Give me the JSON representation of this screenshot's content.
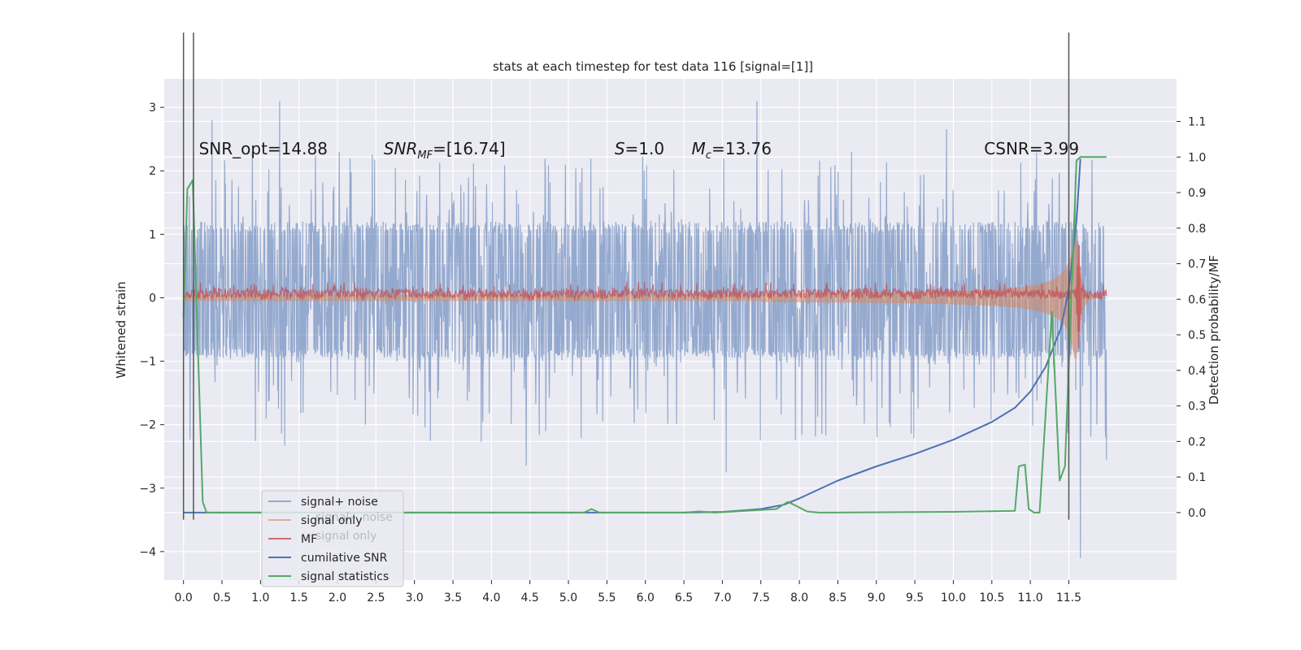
{
  "chart_data": {
    "type": "line",
    "title": "stats at each timestep for test data 116 [signal=[1]]",
    "xlabel": "",
    "ylabel": "Whitened strain",
    "y2label": "Detection probability/MF",
    "xlim": [
      -0.25,
      12.9
    ],
    "ylim": [
      -4.45,
      3.45
    ],
    "y2lim": [
      -0.19,
      1.22
    ],
    "xticks": [
      0.0,
      0.5,
      1.0,
      1.5,
      2.0,
      2.5,
      3.0,
      3.5,
      4.0,
      4.5,
      5.0,
      5.5,
      6.0,
      6.5,
      7.0,
      7.5,
      8.0,
      8.5,
      9.0,
      9.5,
      10.0,
      10.5,
      11.0,
      11.5
    ],
    "xticklabels": [
      "0.0",
      "0.5",
      "1.0",
      "1.5",
      "2.0",
      "2.5",
      "3.0",
      "3.5",
      "4.0",
      "4.5",
      "5.0",
      "5.5",
      "6.0",
      "6.5",
      "7.0",
      "7.5",
      "8.0",
      "8.5",
      "9.0",
      "9.5",
      "10.0",
      "10.5",
      "11.0",
      "11.5"
    ],
    "yticks": [
      -4,
      -3,
      -2,
      -1,
      0,
      1,
      2,
      3
    ],
    "yticklabels": [
      "−4",
      "−3",
      "−2",
      "−1",
      "0",
      "1",
      "2",
      "3"
    ],
    "y2ticks": [
      0.0,
      0.1,
      0.2,
      0.3,
      0.4,
      0.5,
      0.6,
      0.7,
      0.8,
      0.9,
      1.0,
      1.1
    ],
    "y2ticklabels": [
      "0.0",
      "0.1",
      "0.2",
      "0.3",
      "0.4",
      "0.5",
      "0.6",
      "0.7",
      "0.8",
      "0.9",
      "1.0",
      "1.1"
    ],
    "grid": true,
    "legend_position": "lower-left",
    "annotations": [
      {
        "id": "snr-opt",
        "text": "SNR_opt=14.88",
        "x": 0.2,
        "y": 2.35
      },
      {
        "id": "snr-mf",
        "text": "SNR",
        "sub": "MF",
        "rest": "=[16.74]",
        "x": 2.6,
        "y": 2.35,
        "italic": true
      },
      {
        "id": "s-val",
        "text": "S",
        "rest": "=1.0",
        "x": 5.6,
        "y": 2.35,
        "italic": true
      },
      {
        "id": "mc-val",
        "text": "M",
        "sub": "c",
        "rest": "=13.76",
        "x": 6.6,
        "y": 2.35,
        "italic": true
      },
      {
        "id": "csnr",
        "text": "CSNR=3.99",
        "x": 10.4,
        "y": 2.35
      }
    ],
    "vlines": [
      0.0,
      0.13,
      11.5
    ],
    "vline_ranges": [
      [
        -0.02,
        1.0
      ],
      [
        -0.02,
        1.0
      ],
      [
        -0.02,
        1.0
      ]
    ],
    "series": [
      {
        "name": "signal+ noise",
        "axis": "left",
        "color": "#4c72b0",
        "opacity": 0.55,
        "kind": "noise",
        "x_start": 0.0,
        "x_end": 11.99,
        "core_low": -0.95,
        "core_high": 1.2,
        "spike_max": 3.1,
        "spike_min": -2.7,
        "peaks": [
          {
            "x": 1.25,
            "y": 3.1
          },
          {
            "x": 0.37,
            "y": 2.8
          },
          {
            "x": 7.45,
            "y": 3.1
          },
          {
            "x": 4.45,
            "y": -2.65
          },
          {
            "x": 7.05,
            "y": -2.75
          },
          {
            "x": 11.65,
            "y": -4.1
          },
          {
            "x": 11.99,
            "y": -2.55
          }
        ]
      },
      {
        "name": "signal only",
        "axis": "left",
        "color": "#dd8452",
        "opacity": 0.5,
        "kind": "chirp",
        "x_start": 0.0,
        "x_end": 11.99,
        "peak_x": 11.6,
        "peak_amp": 0.95,
        "base_amp": 0.05
      },
      {
        "name": "MF",
        "axis": "left",
        "color": "#c44e52",
        "opacity": 0.75,
        "kind": "mf",
        "x_start": 0.0,
        "x_end": 11.99,
        "level": 0.1,
        "spike_x": 11.63,
        "spike_y": 1.0
      },
      {
        "name": "cumilative SNR",
        "axis": "right",
        "color": "#4c72b0",
        "opacity": 1.0,
        "kind": "line",
        "x": [
          0.0,
          6.5,
          7.0,
          7.5,
          7.8,
          8.0,
          8.5,
          9.0,
          9.5,
          10.0,
          10.5,
          10.8,
          11.0,
          11.2,
          11.4,
          11.5,
          11.6,
          11.65
        ],
        "y": [
          0.0,
          0.0,
          0.002,
          0.01,
          0.022,
          0.04,
          0.09,
          0.13,
          0.165,
          0.205,
          0.255,
          0.295,
          0.34,
          0.41,
          0.52,
          0.63,
          0.82,
          0.995
        ]
      },
      {
        "name": "signal statistics",
        "axis": "right",
        "color": "#55a868",
        "opacity": 1.0,
        "kind": "line",
        "x": [
          0.0,
          0.05,
          0.12,
          0.25,
          0.3,
          0.5,
          5.2,
          5.3,
          5.4,
          6.5,
          6.7,
          6.9,
          7.7,
          7.85,
          7.95,
          8.1,
          8.25,
          10.0,
          10.8,
          10.85,
          10.93,
          10.98,
          11.05,
          11.12,
          11.28,
          11.38,
          11.45,
          11.6,
          11.65,
          11.99
        ],
        "y": [
          0.55,
          0.91,
          0.935,
          0.03,
          0.0,
          0.0,
          0.0,
          0.01,
          0.0,
          0.0,
          0.003,
          0.0,
          0.01,
          0.03,
          0.02,
          0.003,
          0.0,
          0.002,
          0.005,
          0.13,
          0.135,
          0.01,
          0.0,
          0.0,
          0.565,
          0.09,
          0.13,
          0.99,
          1.0,
          1.0
        ]
      }
    ]
  },
  "legend": {
    "items": [
      {
        "label": "signal+ noise",
        "color": "#4c72b0",
        "opacity": 0.55
      },
      {
        "label": "signal only",
        "color": "#dd8452",
        "opacity": 0.6
      },
      {
        "label": "MF",
        "color": "#c44e52",
        "opacity": 0.8
      },
      {
        "label": "cumilative SNR",
        "color": "#4c72b0",
        "opacity": 1.0
      },
      {
        "label": "signal statistics",
        "color": "#55a868",
        "opacity": 1.0
      }
    ],
    "ghost_items": [
      "signal+ noise",
      "signal only"
    ]
  },
  "colors": {
    "plot_background": "#eaeaf2",
    "grid": "#ffffff",
    "vline": "#555555",
    "page_background": "#ffffff"
  }
}
